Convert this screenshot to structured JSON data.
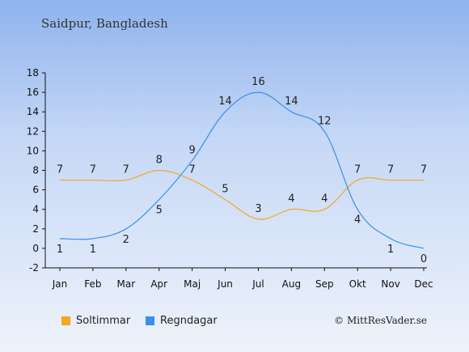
{
  "header": {
    "title": "Saidpur, Bangladesh"
  },
  "legend": {
    "sun_label": "Soltimmar",
    "rain_label": "Regndagar"
  },
  "footer": {
    "copyright": "© MittResVader.se"
  },
  "colors": {
    "sun": "#f5a623",
    "rain": "#3b8fe8",
    "axis": "#111111"
  },
  "chart_data": {
    "type": "line",
    "title": "Saidpur, Bangladesh",
    "categories": [
      "Jan",
      "Feb",
      "Mar",
      "Apr",
      "Maj",
      "Jun",
      "Jul",
      "Aug",
      "Sep",
      "Okt",
      "Nov",
      "Dec"
    ],
    "series": [
      {
        "name": "Soltimmar",
        "values": [
          7,
          7,
          7,
          8,
          7,
          5,
          3,
          4,
          4,
          7,
          7,
          7
        ]
      },
      {
        "name": "Regndagar",
        "values": [
          1,
          1,
          2,
          5,
          9,
          14,
          16,
          14,
          12,
          4,
          1,
          0
        ]
      }
    ],
    "ylim": [
      -2,
      18
    ],
    "yticks": [
      -2,
      0,
      2,
      4,
      6,
      8,
      10,
      12,
      14,
      16,
      18
    ],
    "grid": false,
    "legend_position": "bottom-left"
  }
}
